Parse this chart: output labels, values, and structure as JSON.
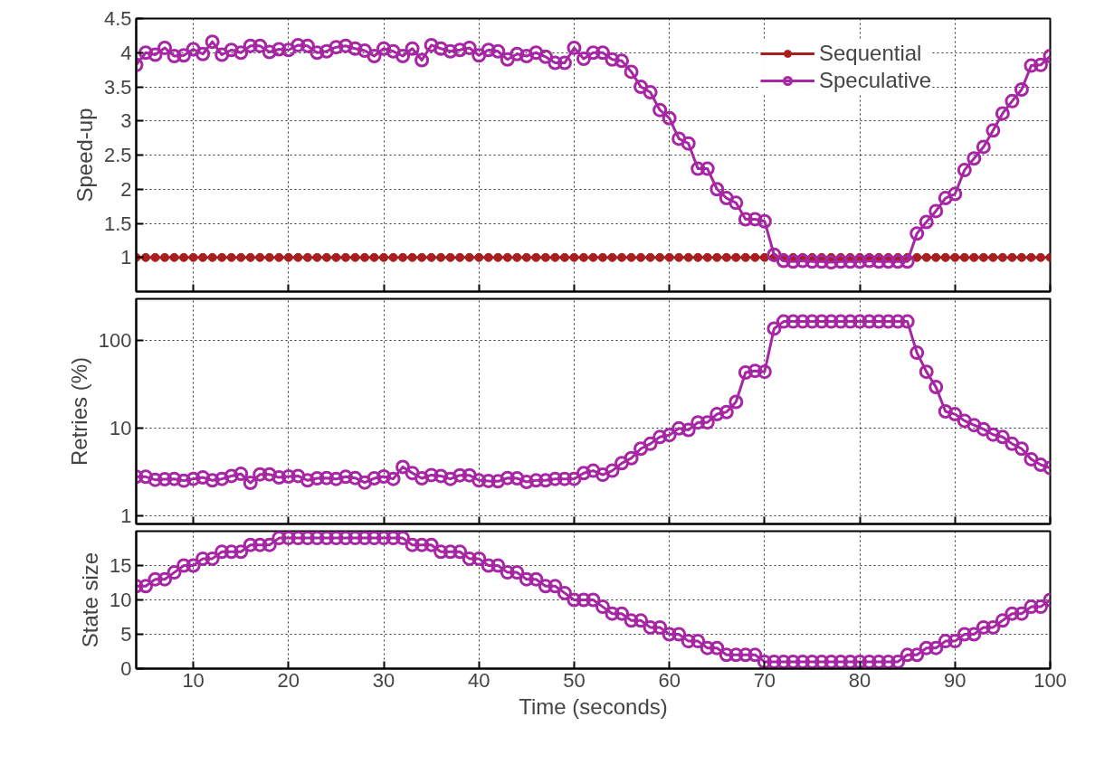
{
  "chart_data": [
    {
      "type": "line",
      "ylabel": "Speed-up",
      "xlim": [
        4,
        100
      ],
      "xticks": [
        10,
        20,
        30,
        40,
        50,
        60,
        70,
        80,
        90,
        100
      ],
      "ylim": [
        0.5,
        4.5
      ],
      "yticks": [
        1,
        1.5,
        2,
        2.5,
        3,
        3.5,
        4,
        4.5
      ],
      "grid": true,
      "legend": "top right",
      "tick_labels": "y",
      "marker": "circle",
      "line_style": "solid",
      "x": [
        4,
        5,
        6,
        7,
        8,
        9,
        10,
        11,
        12,
        13,
        14,
        15,
        16,
        17,
        18,
        19,
        20,
        21,
        22,
        23,
        24,
        25,
        26,
        27,
        28,
        29,
        30,
        31,
        32,
        33,
        34,
        35,
        36,
        37,
        38,
        39,
        40,
        41,
        42,
        43,
        44,
        45,
        46,
        47,
        48,
        49,
        50,
        51,
        52,
        53,
        54,
        55,
        56,
        57,
        58,
        59,
        60,
        61,
        62,
        63,
        64,
        65,
        66,
        67,
        68,
        69,
        70,
        71,
        72,
        73,
        74,
        75,
        76,
        77,
        78,
        79,
        80,
        81,
        82,
        83,
        84,
        85,
        86,
        87,
        88,
        89,
        90,
        91,
        92,
        93,
        94,
        95,
        96,
        97,
        98,
        99,
        100
      ],
      "series": [
        {
          "name": "Sequential",
          "color": "#a81f1f",
          "values": [
            1,
            1,
            1,
            1,
            1,
            1,
            1,
            1,
            1,
            1,
            1,
            1,
            1,
            1,
            1,
            1,
            1,
            1,
            1,
            1,
            1,
            1,
            1,
            1,
            1,
            1,
            1,
            1,
            1,
            1,
            1,
            1,
            1,
            1,
            1,
            1,
            1,
            1,
            1,
            1,
            1,
            1,
            1,
            1,
            1,
            1,
            1,
            1,
            1,
            1,
            1,
            1,
            1,
            1,
            1,
            1,
            1,
            1,
            1,
            1,
            1,
            1,
            1,
            1,
            1,
            1,
            1,
            1,
            1,
            1,
            1,
            1,
            1,
            1,
            1,
            1,
            1,
            1,
            1,
            1,
            1,
            1,
            1,
            1,
            1,
            1,
            1,
            1,
            1,
            1,
            1,
            1,
            1,
            1,
            1,
            1,
            1
          ]
        },
        {
          "name": "Speculative",
          "color": "#a626a4",
          "values": [
            3.82,
            4.0,
            3.97,
            4.07,
            3.95,
            3.96,
            4.05,
            3.98,
            4.16,
            3.97,
            4.04,
            4.0,
            4.1,
            4.1,
            4.01,
            4.05,
            4.04,
            4.11,
            4.1,
            4.0,
            4.02,
            4.08,
            4.1,
            4.06,
            4.03,
            3.95,
            4.06,
            4.02,
            3.95,
            4.06,
            3.89,
            4.11,
            4.06,
            4.02,
            4.04,
            4.07,
            3.96,
            4.04,
            4.02,
            3.9,
            3.98,
            3.95,
            4.0,
            3.94,
            3.85,
            3.85,
            4.07,
            3.91,
            4.0,
            4.0,
            3.9,
            3.88,
            3.72,
            3.5,
            3.42,
            3.16,
            3.04,
            2.74,
            2.67,
            2.3,
            2.3,
            2.0,
            1.87,
            1.8,
            1.56,
            1.56,
            1.53,
            1.04,
            0.95,
            0.94,
            0.95,
            0.94,
            0.94,
            0.93,
            0.94,
            0.94,
            0.94,
            0.95,
            0.94,
            0.94,
            0.94,
            0.94,
            1.35,
            1.52,
            1.68,
            1.87,
            1.93,
            2.28,
            2.45,
            2.62,
            2.86,
            3.11,
            3.29,
            3.46,
            3.81,
            3.82,
            3.95
          ]
        }
      ]
    },
    {
      "type": "line",
      "ylabel": "Retries (%)",
      "log": "y",
      "xlim": [
        4,
        100
      ],
      "xticks": [
        10,
        20,
        30,
        40,
        50,
        60,
        70,
        80,
        90,
        100
      ],
      "ylim": [
        0.8,
        300
      ],
      "yticks": [
        1,
        10,
        100
      ],
      "grid": true,
      "tick_labels": "y",
      "marker": "circle",
      "line_style": "solid",
      "x": [
        4,
        5,
        6,
        7,
        8,
        9,
        10,
        11,
        12,
        13,
        14,
        15,
        16,
        17,
        18,
        19,
        20,
        21,
        22,
        23,
        24,
        25,
        26,
        27,
        28,
        29,
        30,
        31,
        32,
        33,
        34,
        35,
        36,
        37,
        38,
        39,
        40,
        41,
        42,
        43,
        44,
        45,
        46,
        47,
        48,
        49,
        50,
        51,
        52,
        53,
        54,
        55,
        56,
        57,
        58,
        59,
        60,
        61,
        62,
        63,
        64,
        65,
        66,
        67,
        68,
        69,
        70,
        71,
        72,
        73,
        74,
        75,
        76,
        77,
        78,
        79,
        80,
        81,
        82,
        83,
        84,
        85,
        86,
        87,
        88,
        89,
        90,
        91,
        92,
        93,
        94,
        95,
        96,
        97,
        98,
        99,
        100
      ],
      "series": [
        {
          "color": "#a626a4",
          "values": [
            2.77,
            2.77,
            2.56,
            2.6,
            2.62,
            2.5,
            2.62,
            2.72,
            2.52,
            2.62,
            2.83,
            2.99,
            2.36,
            2.95,
            2.95,
            2.72,
            2.79,
            2.83,
            2.52,
            2.66,
            2.68,
            2.62,
            2.77,
            2.68,
            2.38,
            2.66,
            2.79,
            2.62,
            3.59,
            3.06,
            2.66,
            2.9,
            2.83,
            2.62,
            2.88,
            2.88,
            2.52,
            2.48,
            2.46,
            2.68,
            2.66,
            2.42,
            2.52,
            2.52,
            2.62,
            2.62,
            2.62,
            3.05,
            3.25,
            2.92,
            3.25,
            3.96,
            4.52,
            5.8,
            6.6,
            7.9,
            8.3,
            9.9,
            9.5,
            11.6,
            11.6,
            14.4,
            15.2,
            19.9,
            43.1,
            45,
            44,
            137,
            165,
            165,
            165,
            165,
            165,
            165,
            165,
            165,
            165,
            165,
            165,
            165,
            165,
            165,
            72.6,
            44,
            29.4,
            15.5,
            14.4,
            12.1,
            10.8,
            9.7,
            8.4,
            7.9,
            6.6,
            5.8,
            4.4,
            3.8,
            3.49
          ]
        }
      ]
    },
    {
      "type": "line",
      "ylabel": "State size",
      "xlabel": "Time (seconds)",
      "xlim": [
        4,
        100
      ],
      "xticks": [
        10,
        20,
        30,
        40,
        50,
        60,
        70,
        80,
        90,
        100
      ],
      "ylim": [
        0,
        20
      ],
      "yticks": [
        0,
        5,
        10,
        15
      ],
      "grid": true,
      "marker": "circle",
      "line_style": "solid",
      "x": [
        4,
        5,
        6,
        7,
        8,
        9,
        10,
        11,
        12,
        13,
        14,
        15,
        16,
        17,
        18,
        19,
        20,
        21,
        22,
        23,
        24,
        25,
        26,
        27,
        28,
        29,
        30,
        31,
        32,
        33,
        34,
        35,
        36,
        37,
        38,
        39,
        40,
        41,
        42,
        43,
        44,
        45,
        46,
        47,
        48,
        49,
        50,
        51,
        52,
        53,
        54,
        55,
        56,
        57,
        58,
        59,
        60,
        61,
        62,
        63,
        64,
        65,
        66,
        67,
        68,
        69,
        70,
        71,
        72,
        73,
        74,
        75,
        76,
        77,
        78,
        79,
        80,
        81,
        82,
        83,
        84,
        85,
        86,
        87,
        88,
        89,
        90,
        91,
        92,
        93,
        94,
        95,
        96,
        97,
        98,
        99,
        100
      ],
      "series": [
        {
          "color": "#a626a4",
          "values": [
            12,
            12,
            13,
            13,
            14,
            15,
            15,
            16,
            16,
            17,
            17,
            17,
            18,
            18,
            18,
            19,
            19,
            19,
            19,
            19,
            19,
            19,
            19,
            19,
            19,
            19,
            19,
            19,
            19,
            18,
            18,
            18,
            17,
            17,
            17,
            16,
            16,
            15,
            15,
            14,
            14,
            13,
            13,
            12,
            12,
            11,
            10,
            10,
            10,
            9,
            8,
            8,
            7,
            7,
            6,
            6,
            5,
            5,
            4,
            4,
            3,
            3,
            2,
            2,
            2,
            2,
            1,
            1,
            1,
            1,
            1,
            1,
            1,
            1,
            1,
            1,
            1,
            1,
            1,
            1,
            1,
            2,
            2,
            3,
            3,
            4,
            4,
            5,
            5,
            6,
            6,
            7,
            8,
            8,
            9,
            9,
            10
          ]
        }
      ]
    }
  ]
}
